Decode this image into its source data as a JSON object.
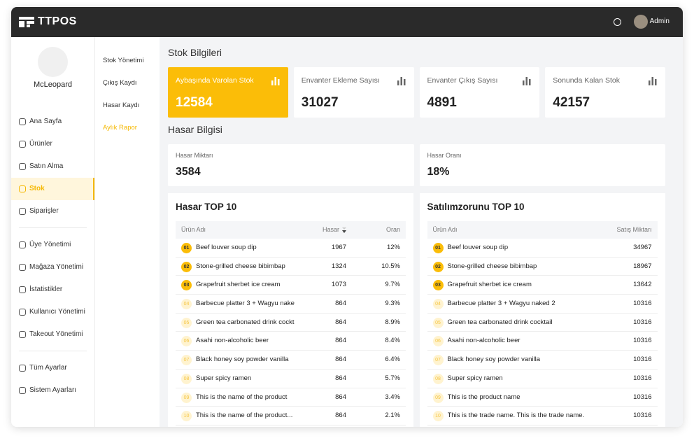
{
  "header": {
    "brand": "TTPOS",
    "user": "Admin"
  },
  "sidebar": {
    "store_name": "McLeopard",
    "groups": [
      [
        {
          "label": "Ana Sayfa",
          "active": false
        },
        {
          "label": "Ürünler",
          "active": false
        },
        {
          "label": "Satın Alma",
          "active": false
        },
        {
          "label": "Stok",
          "active": true
        },
        {
          "label": "Siparişler",
          "active": false
        }
      ],
      [
        {
          "label": "Üye Yönetimi",
          "active": false
        },
        {
          "label": "Mağaza Yönetimi",
          "active": false
        },
        {
          "label": "İstatistikler",
          "active": false
        },
        {
          "label": "Kullanıcı Yönetimi",
          "active": false
        },
        {
          "label": "Takeout Yönetimi",
          "active": false
        }
      ],
      [
        {
          "label": "Tüm Ayarlar",
          "active": false
        },
        {
          "label": "Sistem Ayarları",
          "active": false
        }
      ]
    ]
  },
  "submenu": [
    {
      "label": "Stok Yönetimi",
      "active": false
    },
    {
      "label": "Çıkış Kaydı",
      "active": false
    },
    {
      "label": "Hasar Kaydı",
      "active": false
    },
    {
      "label": "Aylık Rapor",
      "active": true
    }
  ],
  "stock": {
    "title": "Stok Bilgileri",
    "cards": [
      {
        "label": "Aybaşında Varolan Stok",
        "value": "12584",
        "highlight": true
      },
      {
        "label": "Envanter Ekleme Sayısı",
        "value": "31027",
        "highlight": false
      },
      {
        "label": "Envanter Çıkış Sayısı",
        "value": "4891",
        "highlight": false
      },
      {
        "label": "Sonunda Kalan Stok",
        "value": "42157",
        "highlight": false
      }
    ]
  },
  "damage": {
    "title": "Hasar Bilgisi",
    "cards": [
      {
        "label": "Hasar Miktarı",
        "value": "3584"
      },
      {
        "label": "Hasar Oranı",
        "value": "18%"
      }
    ]
  },
  "tables": [
    {
      "title": "Hasar TOP 10",
      "columns": [
        "Ürün Adı",
        "Hasar",
        "Oran"
      ],
      "sort_column": 1,
      "rows": [
        [
          "01",
          "Beef louver soup dip",
          "1967",
          "12%"
        ],
        [
          "02",
          "Stone-grilled cheese bibimbap",
          "1324",
          "10.5%"
        ],
        [
          "03",
          "Grapefruit sherbet ice cream",
          "1073",
          "9.7%"
        ],
        [
          "04",
          "Barbecue platter 3 + Wagyu nake",
          "864",
          "9.3%"
        ],
        [
          "05",
          "Green tea carbonated drink cockt",
          "864",
          "8.9%"
        ],
        [
          "06",
          "Asahi non-alcoholic beer",
          "864",
          "8.4%"
        ],
        [
          "07",
          "Black honey soy powder vanilla",
          "864",
          "6.4%"
        ],
        [
          "08",
          "Super spicy ramen",
          "864",
          "5.7%"
        ],
        [
          "09",
          "This is the name of the product",
          "864",
          "3.4%"
        ],
        [
          "10",
          "This is the name of the product...",
          "864",
          "2.1%"
        ]
      ]
    },
    {
      "title": "Satılımzorunu TOP 10",
      "columns": [
        "Ürün Adı",
        "Satış Miktarı"
      ],
      "sort_column": null,
      "rows": [
        [
          "01",
          "Beef louver soup dip",
          "34967"
        ],
        [
          "02",
          "Stone-grilled cheese bibimbap",
          "18967"
        ],
        [
          "03",
          "Grapefruit sherbet ice cream",
          "13642"
        ],
        [
          "04",
          "Barbecue platter 3 + Wagyu naked 2",
          "10316"
        ],
        [
          "05",
          "Green tea carbonated drink cocktail",
          "10316"
        ],
        [
          "06",
          "Asahi non-alcoholic beer",
          "10316"
        ],
        [
          "07",
          "Black honey soy powder vanilla",
          "10316"
        ],
        [
          "08",
          "Super spicy ramen",
          "10316"
        ],
        [
          "09",
          "This is the product name",
          "10316"
        ],
        [
          "10",
          "This is the trade name. This is the trade name.",
          "10316"
        ]
      ]
    }
  ]
}
